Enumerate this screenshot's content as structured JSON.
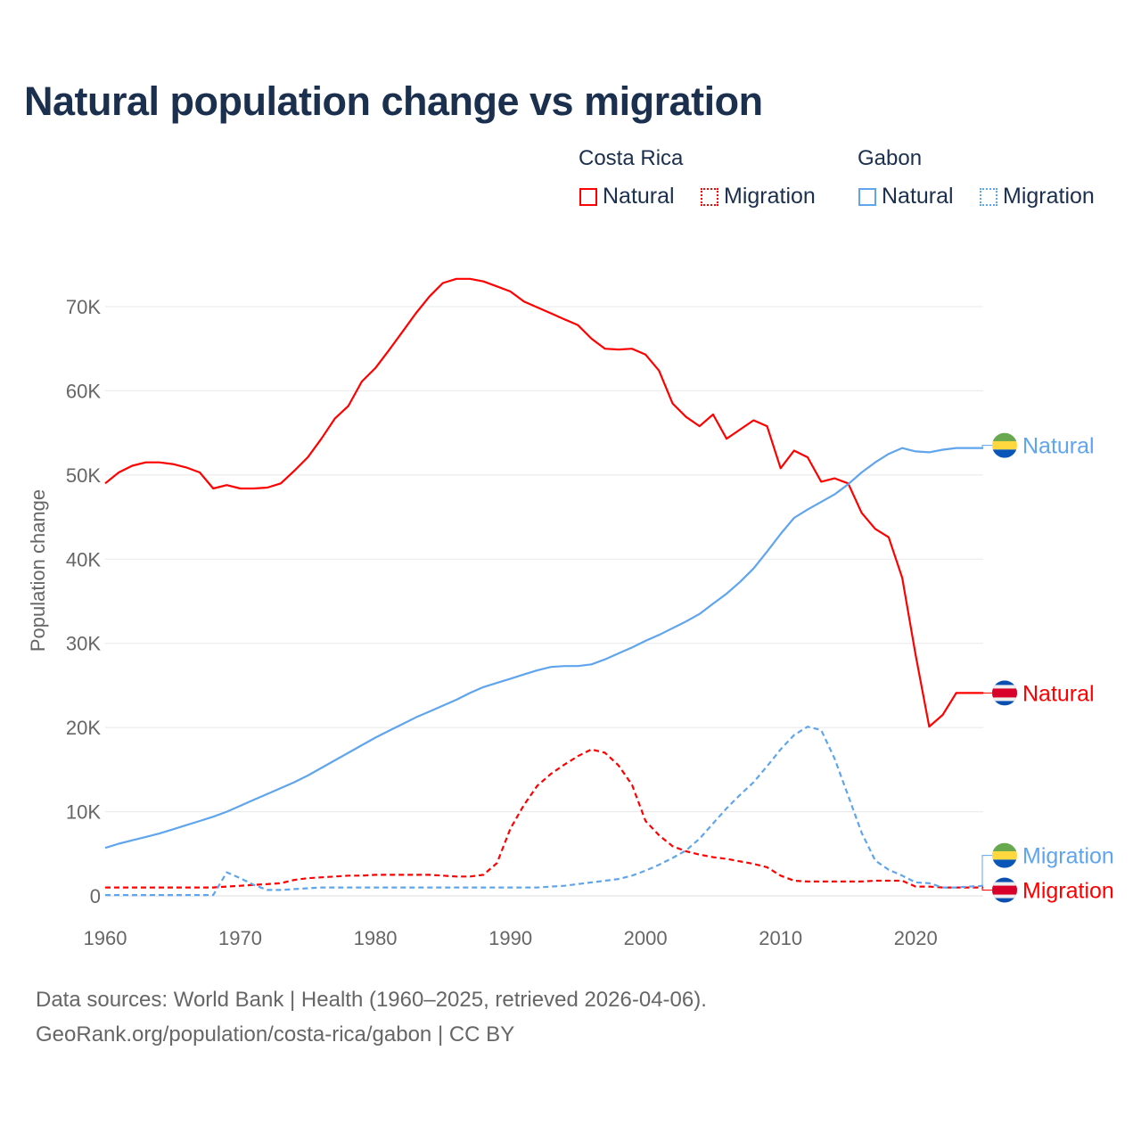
{
  "title": "Natural population change vs migration",
  "legend": {
    "groups": [
      {
        "name": "Costa Rica",
        "items": [
          "Natural",
          "Migration"
        ],
        "color": "#ff0000"
      },
      {
        "name": "Gabon",
        "items": [
          "Natural",
          "Migration"
        ],
        "color": "#5fa5ee"
      }
    ]
  },
  "footer": {
    "line1": "Data sources: World Bank | Health (1960–2025, retrieved 2026-04-06).",
    "line2": "GeoRank.org/population/costa-rica/gabon | CC BY"
  },
  "chart_data": {
    "type": "line",
    "title": "Natural population change vs migration",
    "xlabel": "",
    "ylabel": "Population change",
    "xlim": [
      1960,
      2025
    ],
    "ylim": [
      0,
      75000
    ],
    "x_ticks": [
      "1960",
      "1970",
      "1980",
      "1990",
      "2000",
      "2010",
      "2020"
    ],
    "y_ticks": [
      {
        "v": 0,
        "label": "0"
      },
      {
        "v": 10000,
        "label": "10K"
      },
      {
        "v": 20000,
        "label": "20K"
      },
      {
        "v": 30000,
        "label": "30K"
      },
      {
        "v": 40000,
        "label": "40K"
      },
      {
        "v": 50000,
        "label": "50K"
      },
      {
        "v": 60000,
        "label": "60K"
      },
      {
        "v": 70000,
        "label": "70K"
      }
    ],
    "grid": true,
    "legend_position": "top-right",
    "x_start": 1960,
    "series": [
      {
        "name": "Costa Rica Natural",
        "label": "Natural",
        "color": "#ff0000",
        "dashed": false,
        "flag": "costa-rica",
        "values": [
          49.0,
          50.3,
          51.1,
          51.5,
          51.5,
          51.3,
          50.9,
          50.3,
          48.4,
          48.8,
          48.4,
          48.4,
          48.5,
          49.0,
          50.5,
          52.1,
          54.3,
          56.7,
          58.2,
          61.1,
          62.7,
          64.8,
          67.0,
          69.2,
          71.2,
          72.8,
          73.3,
          73.3,
          73.0,
          72.4,
          71.8,
          70.6,
          69.9,
          69.2,
          68.5,
          67.8,
          66.2,
          65.0,
          64.9,
          65.0,
          64.3,
          62.4,
          58.5,
          56.9,
          55.8,
          57.2,
          54.3,
          55.4,
          56.5,
          55.8,
          50.8,
          52.9,
          52.1,
          49.2,
          49.6,
          49.0,
          45.5,
          43.6,
          42.6,
          37.8,
          28.6,
          20.1,
          21.5,
          24.1,
          24.1,
          24.1
        ]
      },
      {
        "name": "Costa Rica Migration",
        "label": "Migration",
        "color": "#ff0000",
        "dashed": true,
        "flag": "costa-rica",
        "values": [
          1.0,
          1.0,
          1.0,
          1.0,
          1.0,
          1.0,
          1.0,
          1.0,
          1.0,
          1.1,
          1.2,
          1.3,
          1.4,
          1.5,
          1.9,
          2.1,
          2.2,
          2.3,
          2.4,
          2.4,
          2.5,
          2.5,
          2.5,
          2.5,
          2.5,
          2.4,
          2.3,
          2.3,
          2.5,
          3.9,
          8.0,
          10.8,
          13.1,
          14.5,
          15.6,
          16.6,
          17.4,
          17.0,
          15.5,
          13.2,
          8.9,
          7.2,
          5.9,
          5.3,
          4.9,
          4.6,
          4.4,
          4.1,
          3.8,
          3.4,
          2.4,
          1.8,
          1.7,
          1.7,
          1.7,
          1.7,
          1.7,
          1.8,
          1.8,
          1.8,
          1.1,
          1.1,
          1.0,
          1.0,
          1.0,
          1.0
        ]
      },
      {
        "name": "Gabon Natural",
        "label": "Natural",
        "color": "#5fa5ee",
        "dashed": false,
        "flag": "gabon",
        "values": [
          5.7,
          6.2,
          6.6,
          7.0,
          7.4,
          7.9,
          8.4,
          8.9,
          9.4,
          10.0,
          10.7,
          11.4,
          12.1,
          12.8,
          13.5,
          14.3,
          15.2,
          16.1,
          17.0,
          17.9,
          18.8,
          19.6,
          20.4,
          21.2,
          21.9,
          22.6,
          23.3,
          24.1,
          24.8,
          25.3,
          25.8,
          26.3,
          26.8,
          27.2,
          27.3,
          27.3,
          27.5,
          28.1,
          28.8,
          29.5,
          30.3,
          31.0,
          31.8,
          32.6,
          33.5,
          34.7,
          35.9,
          37.3,
          38.9,
          40.9,
          43.0,
          44.9,
          45.9,
          46.8,
          47.7,
          48.9,
          50.3,
          51.5,
          52.5,
          53.2,
          52.8,
          52.7,
          53.0,
          53.2,
          53.2,
          53.2
        ]
      },
      {
        "name": "Gabon Migration",
        "label": "Migration",
        "color": "#5fa5ee",
        "dashed": true,
        "flag": "gabon",
        "values": [
          0.1,
          0.1,
          0.1,
          0.1,
          0.1,
          0.1,
          0.1,
          0.1,
          0.1,
          2.8,
          2.1,
          1.3,
          0.7,
          0.7,
          0.8,
          0.9,
          1.0,
          1.0,
          1.0,
          1.0,
          1.0,
          1.0,
          1.0,
          1.0,
          1.0,
          1.0,
          1.0,
          1.0,
          1.0,
          1.0,
          1.0,
          1.0,
          1.0,
          1.1,
          1.2,
          1.4,
          1.6,
          1.8,
          2.0,
          2.4,
          3.0,
          3.7,
          4.5,
          5.4,
          6.8,
          8.6,
          10.4,
          12.0,
          13.5,
          15.4,
          17.4,
          19.1,
          20.1,
          19.7,
          16.3,
          11.9,
          7.5,
          4.2,
          3.1,
          2.4,
          1.6,
          1.5,
          1.0,
          1.0,
          1.1,
          1.2
        ]
      }
    ],
    "value_unit": "thousands"
  }
}
